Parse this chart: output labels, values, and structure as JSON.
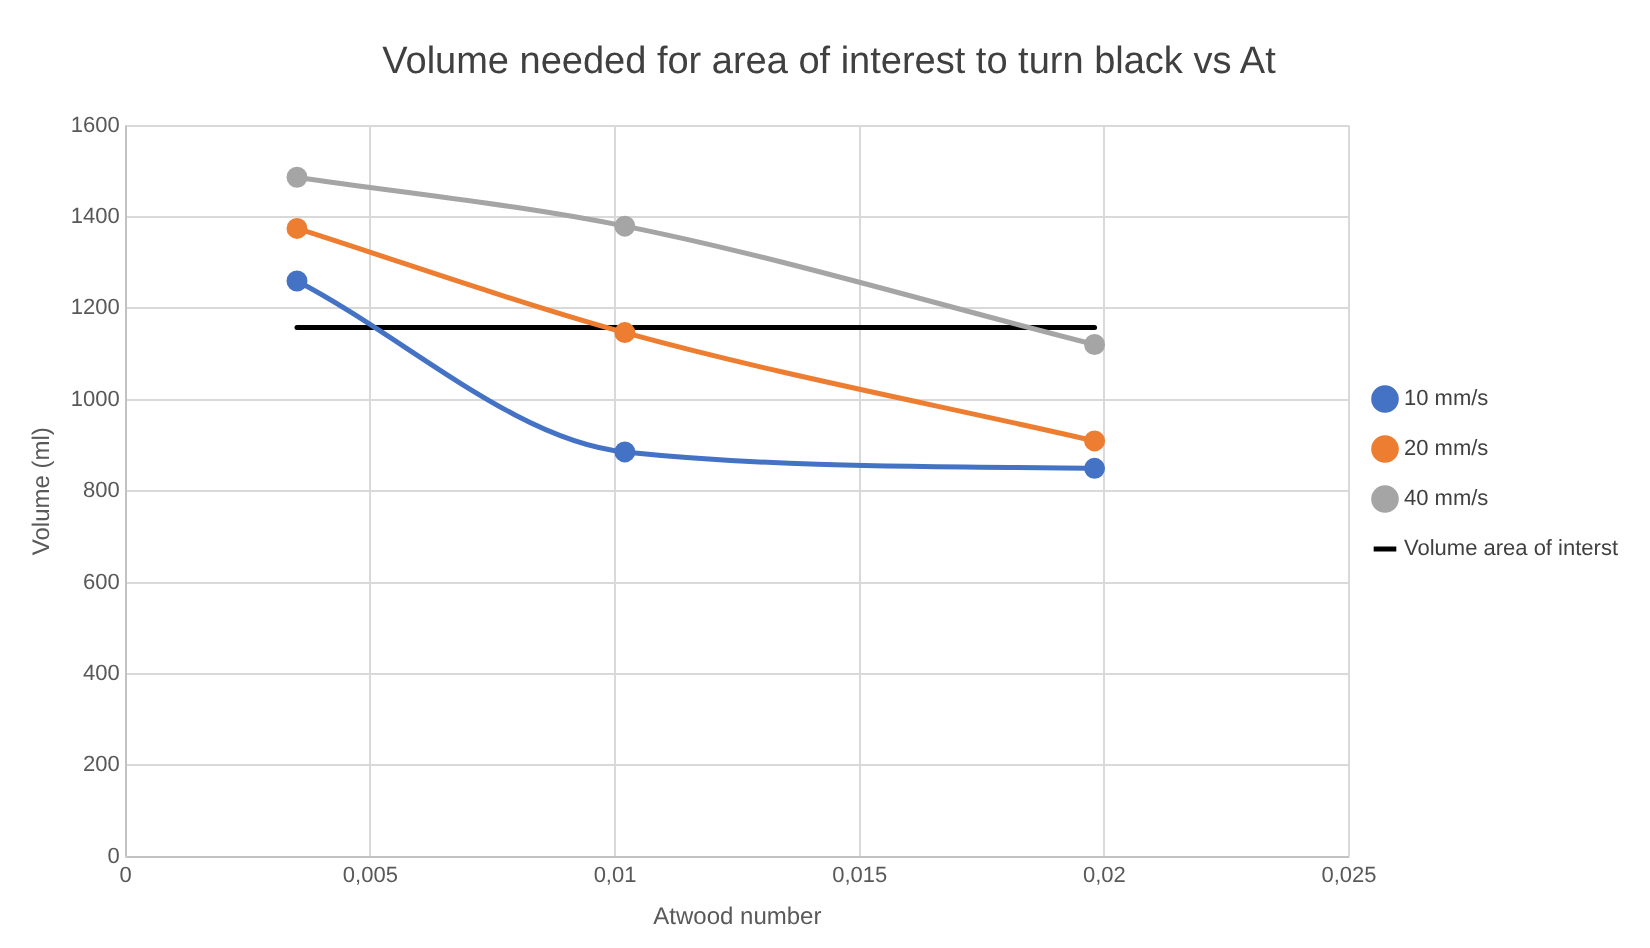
{
  "chart_data": {
    "type": "line",
    "title": "Volume needed for area of interest to turn black vs At",
    "xlabel": "Atwood number",
    "ylabel": "Volume (ml)",
    "xlim": [
      0,
      0.025
    ],
    "xticks": [
      0,
      {
        "value": 0.005,
        "label": "0,005"
      },
      {
        "value": 0.01,
        "label": "0,01"
      },
      {
        "value": 0.015,
        "label": "0,015"
      },
      {
        "value": 0.02,
        "label": "0,02"
      },
      {
        "value": 0.025,
        "label": "0,025"
      }
    ],
    "ylim": [
      0,
      1600
    ],
    "yticks": [
      0,
      200,
      400,
      600,
      800,
      1000,
      1200,
      1400,
      1600
    ],
    "grid": true,
    "legend": "right",
    "marker": "circle",
    "line_style": "solid",
    "x": [
      0.0035,
      0.0102,
      0.0198
    ],
    "series": [
      {
        "name": "10 mm/s",
        "color": "#4472c4",
        "values": [
          1260,
          886,
          850
        ]
      },
      {
        "name": "20 mm/s",
        "color": "#ed7d31",
        "values": [
          1375,
          1147,
          910
        ]
      },
      {
        "name": "40 mm/s",
        "color": "#a5a5a5",
        "values": [
          1487,
          1380,
          1121
        ]
      },
      {
        "name": "Volume area of interst",
        "color": "#000000",
        "marker": "none",
        "x": [
          0.0035,
          0.0198
        ],
        "values": [
          1158,
          1158
        ]
      }
    ]
  }
}
